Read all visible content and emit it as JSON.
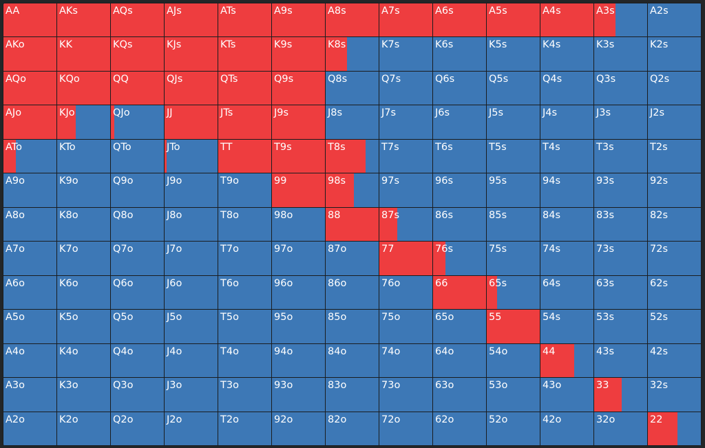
{
  "colors": {
    "raise": "#ee3d3f",
    "fold": "#3d78b6"
  },
  "hands": [
    [
      "AA",
      "AKs",
      "AQs",
      "AJs",
      "ATs",
      "A9s",
      "A8s",
      "A7s",
      "A6s",
      "A5s",
      "A4s",
      "A3s",
      "A2s"
    ],
    [
      "AKo",
      "KK",
      "KQs",
      "KJs",
      "KTs",
      "K9s",
      "K8s",
      "K7s",
      "K6s",
      "K5s",
      "K4s",
      "K3s",
      "K2s"
    ],
    [
      "AQo",
      "KQo",
      "QQ",
      "QJs",
      "QTs",
      "Q9s",
      "Q8s",
      "Q7s",
      "Q6s",
      "Q5s",
      "Q4s",
      "Q3s",
      "Q2s"
    ],
    [
      "AJo",
      "KJo",
      "QJo",
      "JJ",
      "JTs",
      "J9s",
      "J8s",
      "J7s",
      "J6s",
      "J5s",
      "J4s",
      "J3s",
      "J2s"
    ],
    [
      "ATo",
      "KTo",
      "QTo",
      "JTo",
      "TT",
      "T9s",
      "T8s",
      "T7s",
      "T6s",
      "T5s",
      "T4s",
      "T3s",
      "T2s"
    ],
    [
      "A9o",
      "K9o",
      "Q9o",
      "J9o",
      "T9o",
      "99",
      "98s",
      "97s",
      "96s",
      "95s",
      "94s",
      "93s",
      "92s"
    ],
    [
      "A8o",
      "K8o",
      "Q8o",
      "J8o",
      "T8o",
      "98o",
      "88",
      "87s",
      "86s",
      "85s",
      "84s",
      "83s",
      "82s"
    ],
    [
      "A7o",
      "K7o",
      "Q7o",
      "J7o",
      "T7o",
      "97o",
      "87o",
      "77",
      "76s",
      "75s",
      "74s",
      "73s",
      "72s"
    ],
    [
      "A6o",
      "K6o",
      "Q6o",
      "J6o",
      "T6o",
      "96o",
      "86o",
      "76o",
      "66",
      "65s",
      "64s",
      "63s",
      "62s"
    ],
    [
      "A5o",
      "K5o",
      "Q5o",
      "J5o",
      "T5o",
      "95o",
      "85o",
      "75o",
      "65o",
      "55",
      "54s",
      "53s",
      "52s"
    ],
    [
      "A4o",
      "K4o",
      "Q4o",
      "J4o",
      "T4o",
      "94o",
      "84o",
      "74o",
      "64o",
      "54o",
      "44",
      "43s",
      "42s"
    ],
    [
      "A3o",
      "K3o",
      "Q3o",
      "J3o",
      "T3o",
      "93o",
      "83o",
      "73o",
      "63o",
      "53o",
      "43o",
      "33",
      "32s"
    ],
    [
      "A2o",
      "K2o",
      "Q2o",
      "J2o",
      "T2o",
      "92o",
      "82o",
      "72o",
      "62o",
      "52o",
      "42o",
      "32o",
      "22"
    ]
  ],
  "raise_freq": [
    [
      1,
      1,
      1,
      1,
      1,
      1,
      1,
      1,
      1,
      1,
      1,
      0.4,
      0
    ],
    [
      1,
      1,
      1,
      1,
      1,
      1,
      0.4,
      0,
      0,
      0,
      0,
      0,
      0
    ],
    [
      1,
      1,
      1,
      1,
      1,
      1,
      0,
      0,
      0,
      0,
      0,
      0,
      0
    ],
    [
      1,
      0.35,
      0.06,
      1,
      1,
      1,
      0,
      0,
      0,
      0,
      0,
      0,
      0
    ],
    [
      0.24,
      0,
      0,
      0.04,
      1,
      1,
      0.75,
      0,
      0,
      0,
      0,
      0,
      0
    ],
    [
      0,
      0,
      0,
      0,
      0,
      1,
      0.53,
      0,
      0,
      0,
      0,
      0,
      0
    ],
    [
      0,
      0,
      0,
      0,
      0,
      0,
      1,
      0.34,
      0,
      0,
      0,
      0,
      0
    ],
    [
      0,
      0,
      0,
      0,
      0,
      0,
      0,
      1,
      0.24,
      0,
      0,
      0,
      0
    ],
    [
      0,
      0,
      0,
      0,
      0,
      0,
      0,
      0,
      1,
      0.2,
      0,
      0,
      0
    ],
    [
      0,
      0,
      0,
      0,
      0,
      0,
      0,
      0,
      0,
      1,
      0,
      0,
      0
    ],
    [
      0,
      0,
      0,
      0,
      0,
      0,
      0,
      0,
      0,
      0,
      0.64,
      0,
      0
    ],
    [
      0,
      0,
      0,
      0,
      0,
      0,
      0,
      0,
      0,
      0,
      0,
      0.52,
      0
    ],
    [
      0,
      0,
      0,
      0,
      0,
      0,
      0,
      0,
      0,
      0,
      0,
      0,
      0.56
    ]
  ]
}
